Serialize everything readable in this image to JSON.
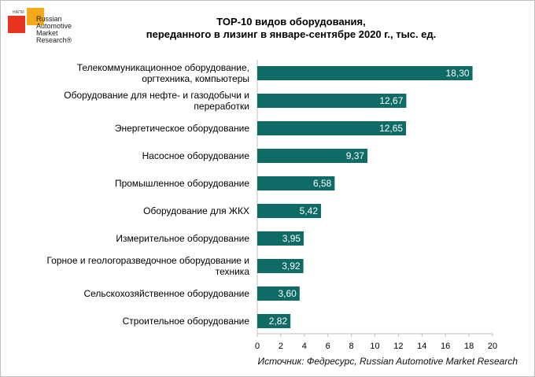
{
  "logo": {
    "tag": "НАПИ",
    "lines": [
      "Russian",
      "Automotive",
      "Market",
      "Research®"
    ]
  },
  "chart_data": {
    "type": "bar",
    "orientation": "horizontal",
    "title": "ТОР-10 видов оборудования, переданного в лизинг в январе-сентябре 2020 г., тыс. ед.",
    "title_lines": [
      "ТОР-10 видов оборудования,",
      "переданного в лизинг в январе-сентябре 2020 г., тыс. ед."
    ],
    "categories": [
      [
        "Телекоммуникационное оборудование,",
        "оргтехника, компьютеры"
      ],
      [
        "Оборудование для нефте- и газодобычи и",
        "переработки"
      ],
      [
        "Энергетическое оборудование"
      ],
      [
        "Насосное оборудование"
      ],
      [
        "Промышленное оборудование"
      ],
      [
        "Оборудование для ЖКХ"
      ],
      [
        "Измерительное оборудование"
      ],
      [
        "Горное и геологоразведочное оборудование и",
        "техника"
      ],
      [
        "Сельскохозяйственное оборудование"
      ],
      [
        "Строительное оборудование"
      ]
    ],
    "values": [
      18.3,
      12.67,
      12.65,
      9.37,
      6.58,
      5.42,
      3.95,
      3.92,
      3.6,
      2.82
    ],
    "value_labels": [
      "18,30",
      "12,67",
      "12,65",
      "9,37",
      "6,58",
      "5,42",
      "3,95",
      "3,92",
      "3,60",
      "2,82"
    ],
    "xlim": [
      0,
      20
    ],
    "xticks": [
      0,
      2,
      4,
      6,
      8,
      10,
      12,
      14,
      16,
      18,
      20
    ],
    "xlabel": "",
    "ylabel": "",
    "grid": false,
    "bar_color": "#0f6b65"
  },
  "source": "Источник: Федресурс, Russian Automotive Market Research"
}
